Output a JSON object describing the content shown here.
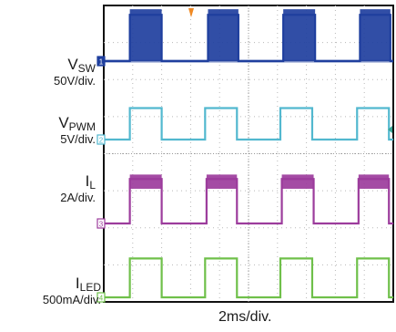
{
  "chart_data": {
    "type": "line",
    "title": "",
    "xlabel": "2ms/div.",
    "x_divisions": 10,
    "y_divisions": 8,
    "period_div": 2.6,
    "grid": true,
    "trigger_marker": "orange-triangle-top",
    "series": [
      {
        "name": "V",
        "subscript": "SW",
        "scale": "50V/div.",
        "marker": "1",
        "color": "#1f3f9e",
        "low_div": 0.0,
        "high_div": 1.25,
        "ripple_div": 0.15,
        "high_fill": true,
        "edges_div": [
          [
            0.9,
            2.0
          ],
          [
            3.6,
            4.65
          ],
          [
            6.2,
            7.3
          ],
          [
            8.85,
            9.9
          ]
        ]
      },
      {
        "name": "V",
        "subscript": "PWM",
        "scale": "5V/div.",
        "marker": "2",
        "color": "#52b8cf",
        "low_div": 0.0,
        "high_div": 0.85,
        "ripple_div": 0.0,
        "high_fill": false,
        "edges_div": [
          [
            0.9,
            2.0
          ],
          [
            3.5,
            4.6
          ],
          [
            6.1,
            7.2
          ],
          [
            8.75,
            9.85
          ]
        ]
      },
      {
        "name": "I",
        "subscript": "L",
        "scale": "2A/div.",
        "marker": "3",
        "color": "#9c3c9c",
        "low_div": 0.0,
        "high_div": 1.2,
        "ripple_div": 0.12,
        "high_fill": true,
        "edges_div": [
          [
            0.9,
            2.0
          ],
          [
            3.55,
            4.6
          ],
          [
            6.15,
            7.25
          ],
          [
            8.8,
            9.85
          ]
        ]
      },
      {
        "name": "I",
        "subscript": "LED",
        "scale": "500mA/div.",
        "marker": "4",
        "color": "#6fc04a",
        "low_div": 0.0,
        "high_div": 1.05,
        "ripple_div": 0.0,
        "high_fill": false,
        "edges_div": [
          [
            0.9,
            2.0
          ],
          [
            3.5,
            4.6
          ],
          [
            6.1,
            7.2
          ],
          [
            8.75,
            9.85
          ]
        ]
      }
    ]
  }
}
